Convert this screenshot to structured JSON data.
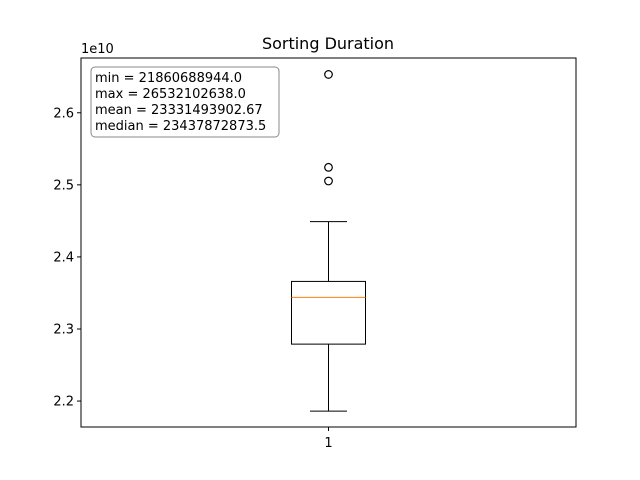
{
  "chart_data": {
    "type": "box",
    "title": "Sorting Duration",
    "xlabel": "",
    "ylabel": "",
    "offset_text": "1e10",
    "categories": [
      "1"
    ],
    "boxes": [
      {
        "category": "1",
        "whisker_low": 21860000000.0,
        "q1": 22790000000.0,
        "median": 23438000000.0,
        "q3": 23660000000.0,
        "whisker_high": 24490000000.0,
        "fliers": [
          25053000000.0,
          25243000000.0,
          26532000000.0
        ]
      }
    ],
    "ylim": [
      21640000000.0,
      26760000000.0
    ],
    "yticks": [
      2.2,
      2.3,
      2.4,
      2.5,
      2.6
    ],
    "ytick_labels": [
      "2.2",
      "2.3",
      "2.4",
      "2.5",
      "2.6"
    ],
    "ytick_values": [
      22000000000.0,
      23000000000.0,
      24000000000.0,
      25000000000.0,
      26000000000.0
    ],
    "grid": false,
    "stats_box": {
      "placement": "top-left",
      "lines": [
        "min = 21860688944.0",
        "max = 26532102638.0",
        "mean = 23331493902.67",
        "median = 23437872873.5"
      ]
    },
    "colors": {
      "box": "#000000",
      "median": "#ff7f0e",
      "flier": "#000000"
    }
  }
}
